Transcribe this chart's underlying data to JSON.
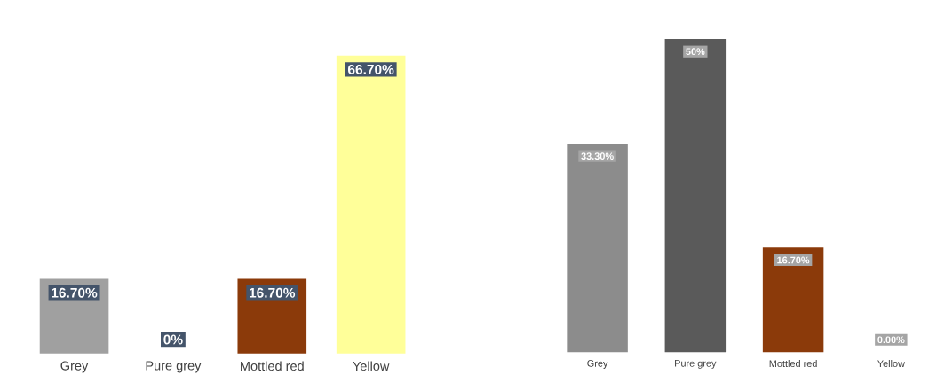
{
  "chart_data": [
    {
      "type": "bar",
      "categories": [
        "Grey",
        "Pure grey",
        "Mottled red",
        "Yellow"
      ],
      "values": [
        16.7,
        0,
        16.7,
        66.7
      ],
      "colors": [
        "#a0a0a0",
        "#7f7f7f",
        "#8b3a0a",
        "#ffff99"
      ],
      "value_labels": [
        "16.70%",
        "0%",
        "16.70%",
        "66.70%"
      ]
    },
    {
      "type": "bar",
      "categories": [
        "Grey",
        "Pure grey",
        "Mottled red",
        "Yellow"
      ],
      "values": [
        33.3,
        50,
        16.7,
        0
      ],
      "colors": [
        "#8c8c8c",
        "#5a5a5a",
        "#8b3a0a",
        "#ffff99"
      ],
      "value_labels": [
        "33.30%",
        "50%",
        "16.70%",
        "0.00%"
      ]
    }
  ]
}
